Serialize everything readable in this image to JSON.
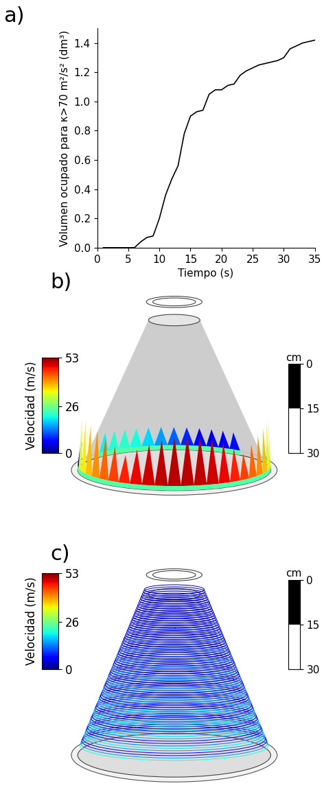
{
  "chart_data": [
    {
      "type": "line",
      "title": "a)",
      "x_label": "Tiempo (s)",
      "y_label": "Volumen ocupado para κ>70 m²/s² (dm³)",
      "x": [
        1,
        3,
        5,
        6,
        7,
        8,
        9,
        10,
        11,
        12,
        13,
        14,
        15,
        16,
        17,
        18,
        19,
        20,
        21,
        22,
        23,
        24,
        25,
        26,
        27,
        28,
        29,
        30,
        31,
        32,
        33,
        34,
        35
      ],
      "values": [
        0.0,
        0.0,
        0.0,
        0.0,
        0.04,
        0.07,
        0.08,
        0.2,
        0.36,
        0.47,
        0.56,
        0.78,
        0.9,
        0.93,
        0.94,
        1.05,
        1.08,
        1.08,
        1.11,
        1.12,
        1.18,
        1.21,
        1.23,
        1.25,
        1.26,
        1.27,
        1.28,
        1.3,
        1.36,
        1.38,
        1.4,
        1.41,
        1.42
      ],
      "color": "#000000",
      "xlim": [
        0,
        35
      ],
      "xticks": [
        0,
        5,
        10,
        15,
        20,
        25,
        30,
        35
      ],
      "ylim": [
        0,
        1.5
      ],
      "yticks": [
        {
          "value": 0,
          "label": "0.0"
        },
        {
          "value": 0.2,
          "label": "0.2"
        },
        {
          "value": 0.4,
          "label": "0.4"
        },
        {
          "value": 0.6,
          "label": "0.6"
        },
        {
          "value": 0.8,
          "label": "0.8"
        },
        {
          "value": 1.0,
          "label": "1.0"
        },
        {
          "value": 1.2,
          "label": "1.2"
        },
        {
          "value": 1.4,
          "label": "1.4"
        }
      ]
    },
    {
      "type": "image",
      "title": "b)",
      "colorbar": {
        "label": "Velocidad (m/s)",
        "range": [
          0,
          53
        ],
        "ticks": [
          0,
          26,
          53
        ]
      },
      "scale_bar": {
        "label": "cm",
        "ticks": [
          0,
          15,
          30
        ]
      }
    },
    {
      "type": "image",
      "title": "c)",
      "colorbar": {
        "label": "Velocidad (m/s)",
        "range": [
          0,
          53
        ],
        "ticks": [
          0,
          26,
          53
        ]
      },
      "scale_bar": {
        "label": "cm",
        "ticks": [
          0,
          15,
          30
        ]
      }
    }
  ]
}
